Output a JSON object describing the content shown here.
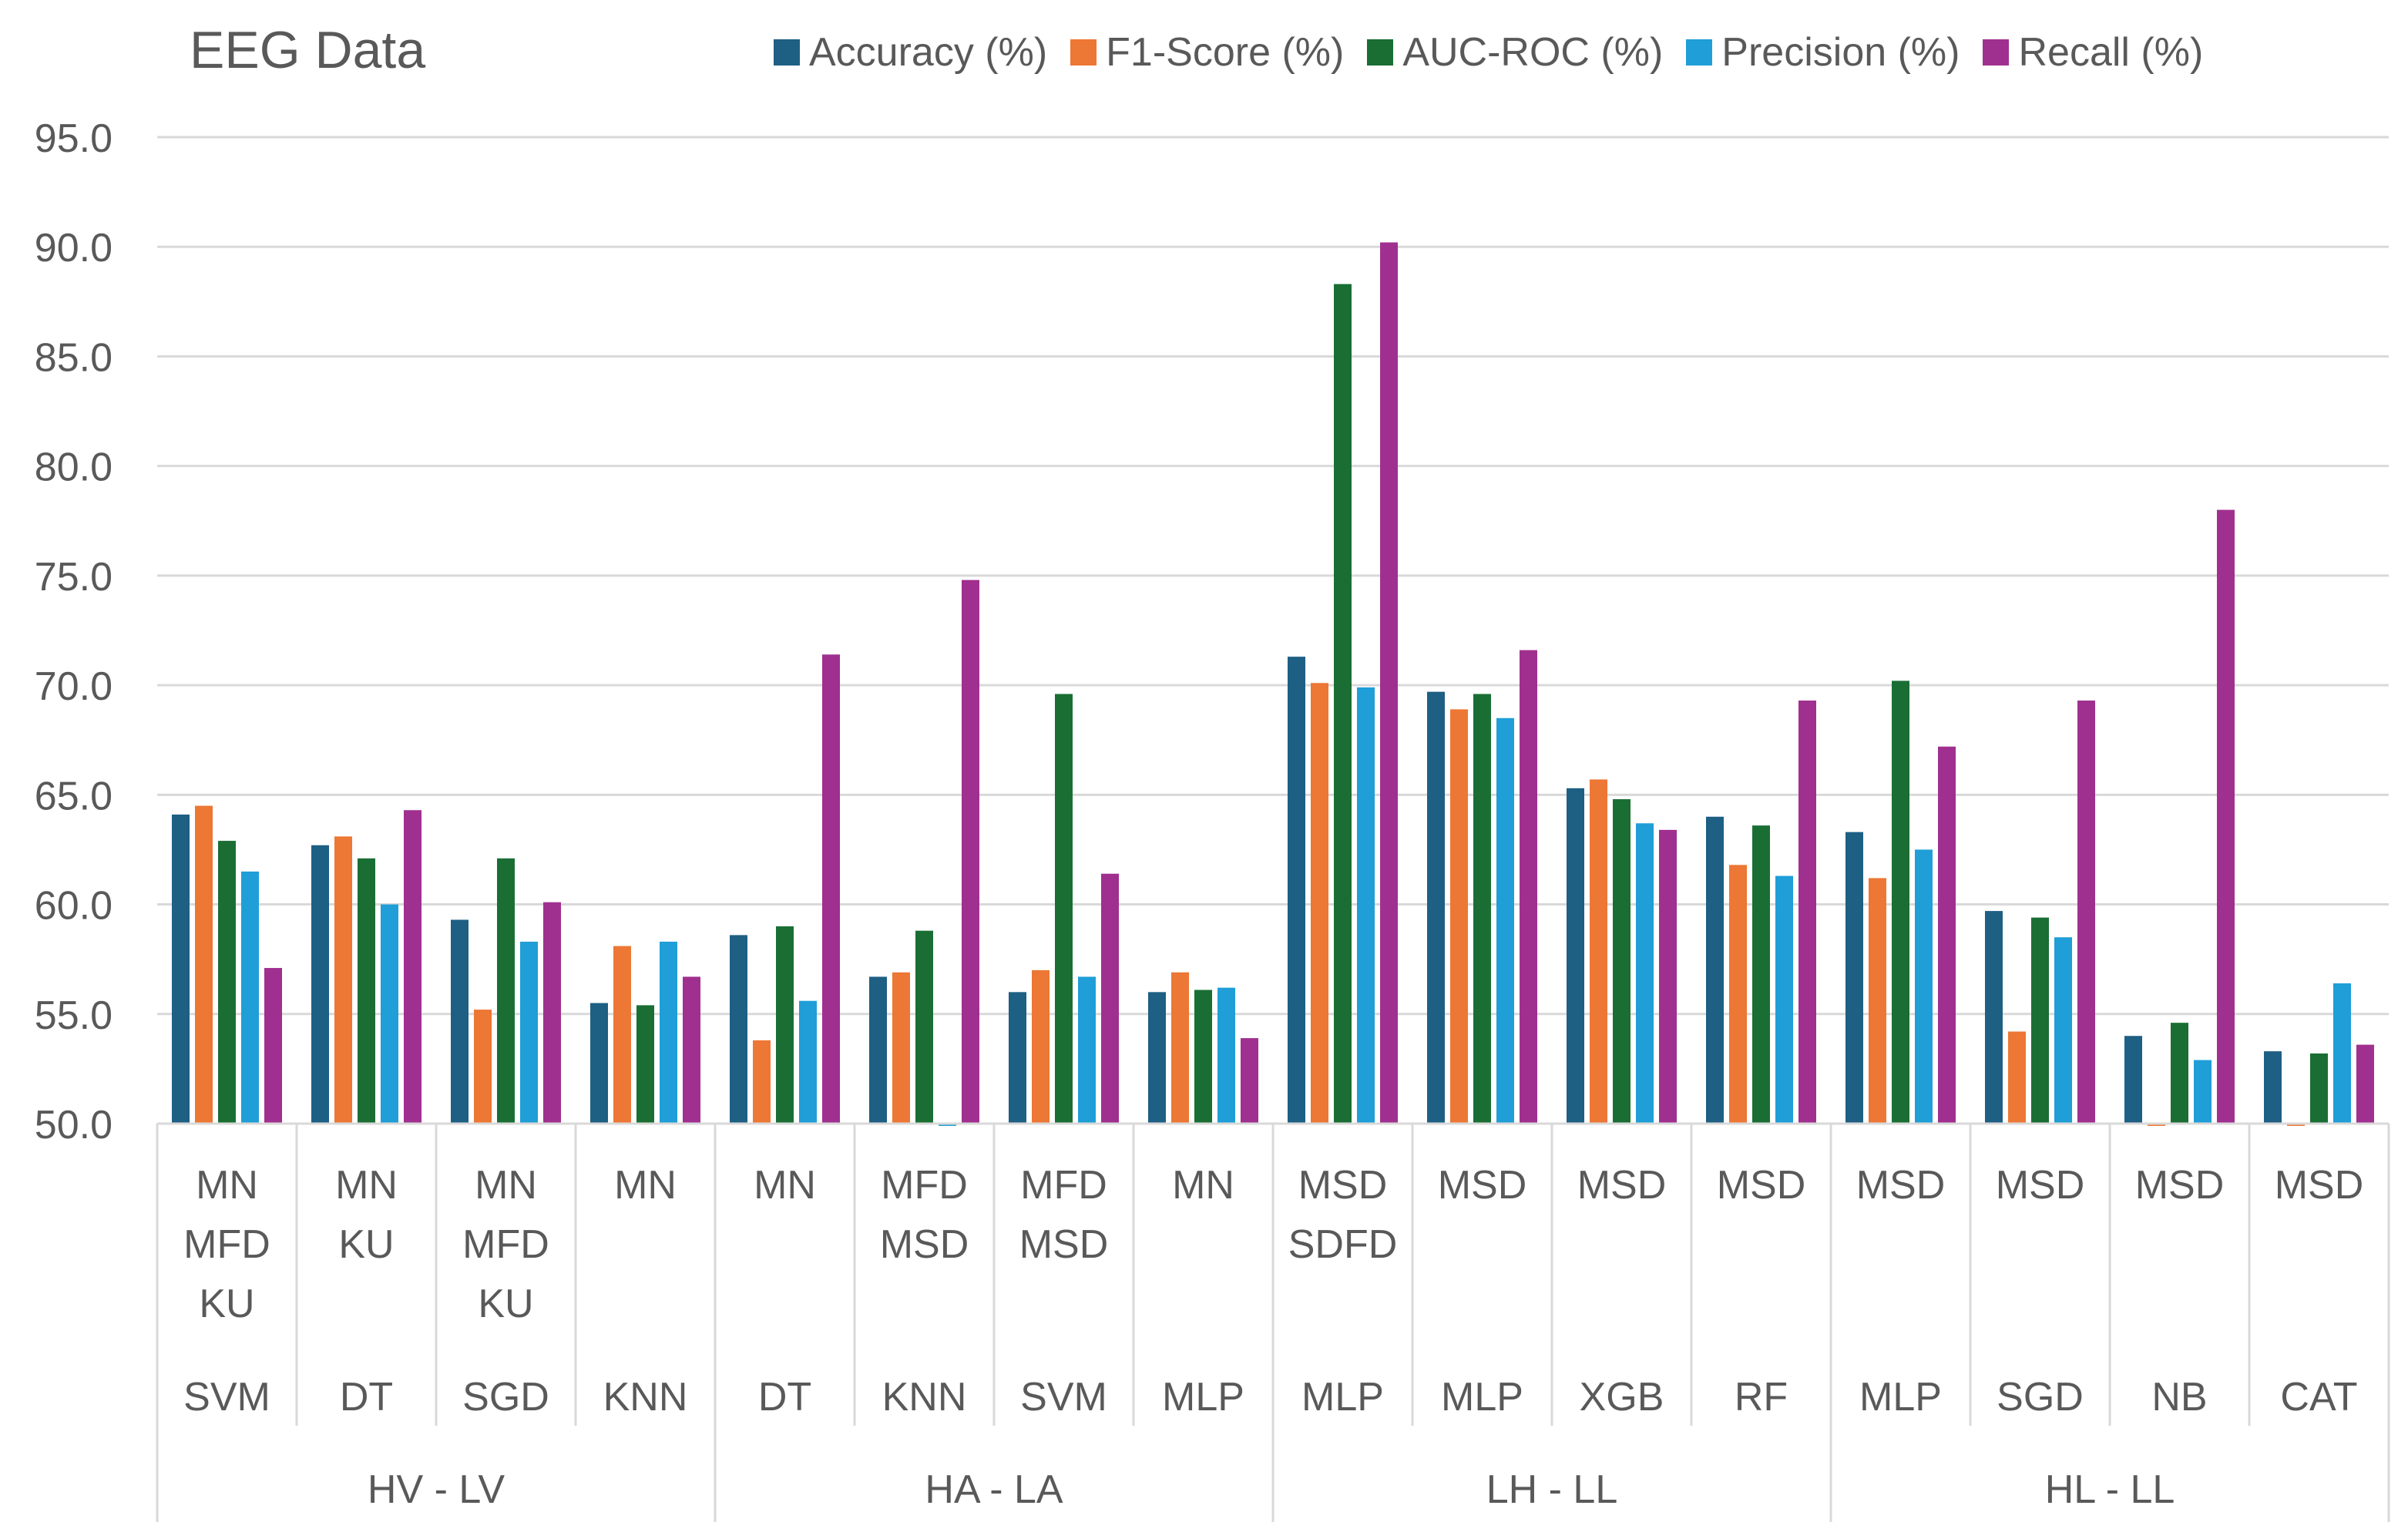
{
  "chart_data": {
    "type": "bar",
    "title": "EEG Data",
    "ylim": [
      50,
      95
    ],
    "yticks": [
      "50.0",
      "55.0",
      "60.0",
      "65.0",
      "70.0",
      "75.0",
      "80.0",
      "85.0",
      "90.0",
      "95.0"
    ],
    "grid": true,
    "legend_position": "top",
    "series": [
      {
        "name": "Accuracy (%)",
        "color": "#1e5f84",
        "values": [
          64.1,
          62.7,
          59.3,
          55.5,
          58.6,
          56.7,
          56.0,
          56.0,
          71.3,
          69.7,
          65.3,
          64.0,
          63.3,
          59.7,
          54.0,
          53.3
        ]
      },
      {
        "name": "F1-Score (%)",
        "color": "#ed7734",
        "values": [
          64.5,
          63.1,
          55.2,
          58.1,
          53.8,
          56.9,
          57.0,
          56.9,
          70.1,
          68.9,
          65.7,
          61.8,
          61.2,
          54.2,
          49.9,
          49.9
        ]
      },
      {
        "name": "AUC-ROC (%)",
        "color": "#1a6e34",
        "values": [
          62.9,
          62.1,
          62.1,
          55.4,
          59.0,
          58.8,
          69.6,
          56.1,
          88.3,
          69.6,
          64.8,
          63.6,
          70.2,
          59.4,
          54.6,
          53.2
        ]
      },
      {
        "name": "Precision (%)",
        "color": "#1f9ed8",
        "values": [
          61.5,
          60.0,
          58.3,
          58.3,
          55.6,
          50.0,
          56.7,
          56.2,
          69.9,
          68.5,
          63.7,
          61.3,
          62.5,
          58.5,
          52.9,
          56.4
        ]
      },
      {
        "name": "Recall (%)",
        "color": "#a0308f",
        "values": [
          57.1,
          64.3,
          60.1,
          56.7,
          71.4,
          74.8,
          61.4,
          53.9,
          90.2,
          71.6,
          63.4,
          69.3,
          67.2,
          69.3,
          78.0,
          53.6
        ]
      }
    ],
    "categories": [
      {
        "features": [
          "MN",
          "MFD",
          "KU"
        ],
        "model": "SVM"
      },
      {
        "features": [
          "MN",
          "KU"
        ],
        "model": "DT"
      },
      {
        "features": [
          "MN",
          "MFD",
          "KU"
        ],
        "model": "SGD"
      },
      {
        "features": [
          "MN"
        ],
        "model": "KNN"
      },
      {
        "features": [
          "MN"
        ],
        "model": "DT"
      },
      {
        "features": [
          "MFD",
          "MSD"
        ],
        "model": "KNN"
      },
      {
        "features": [
          "MFD",
          "MSD"
        ],
        "model": "SVM"
      },
      {
        "features": [
          "MN"
        ],
        "model": "MLP"
      },
      {
        "features": [
          "MSD",
          "SDFD"
        ],
        "model": "MLP"
      },
      {
        "features": [
          "MSD"
        ],
        "model": "MLP"
      },
      {
        "features": [
          "MSD"
        ],
        "model": "XGB"
      },
      {
        "features": [
          "MSD"
        ],
        "model": "RF"
      },
      {
        "features": [
          "MSD"
        ],
        "model": "MLP"
      },
      {
        "features": [
          "MSD"
        ],
        "model": "SGD"
      },
      {
        "features": [
          "MSD"
        ],
        "model": "NB"
      },
      {
        "features": [
          "MSD"
        ],
        "model": "CAT"
      }
    ],
    "groups": [
      {
        "label": "HV - LV",
        "count": 4
      },
      {
        "label": "HA - LA",
        "count": 4
      },
      {
        "label": "LH - LL",
        "count": 4
      },
      {
        "label": "HL - LL",
        "count": 4
      }
    ]
  }
}
